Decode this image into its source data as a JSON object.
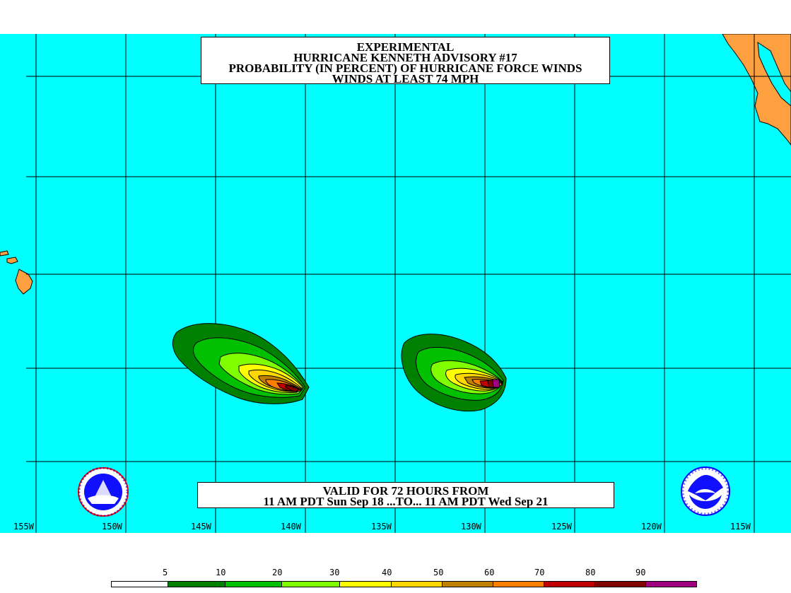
{
  "title": {
    "line1": "EXPERIMENTAL",
    "line2": "HURRICANE KENNETH ADVISORY #17",
    "line3": "PROBABILITY (IN PERCENT) OF HURRICANE FORCE WINDS",
    "line4": "WINDS AT LEAST 74 MPH"
  },
  "valid": {
    "line1": "VALID FOR 72 HOURS FROM",
    "line2": "11 AM PDT Sun Sep 18 ...TO... 11 AM PDT Wed Sep 21"
  },
  "longitudes": [
    "155W",
    "150W",
    "145W",
    "140W",
    "135W",
    "130W",
    "125W",
    "120W",
    "115W"
  ],
  "legend": {
    "values": [
      "5",
      "10",
      "20",
      "30",
      "40",
      "50",
      "60",
      "70",
      "80",
      "90"
    ],
    "colors": [
      "#ffffff",
      "#008000",
      "#00c000",
      "#80ff00",
      "#ffff00",
      "#ffd700",
      "#c08000",
      "#ff8000",
      "#c00000",
      "#800000",
      "#a00080"
    ]
  },
  "colors": {
    "ocean": "#00ffff",
    "land": "#ffa040",
    "grid": "#000000"
  },
  "logos": {
    "left": "national-weather-service-logo",
    "right": "noaa-logo"
  }
}
